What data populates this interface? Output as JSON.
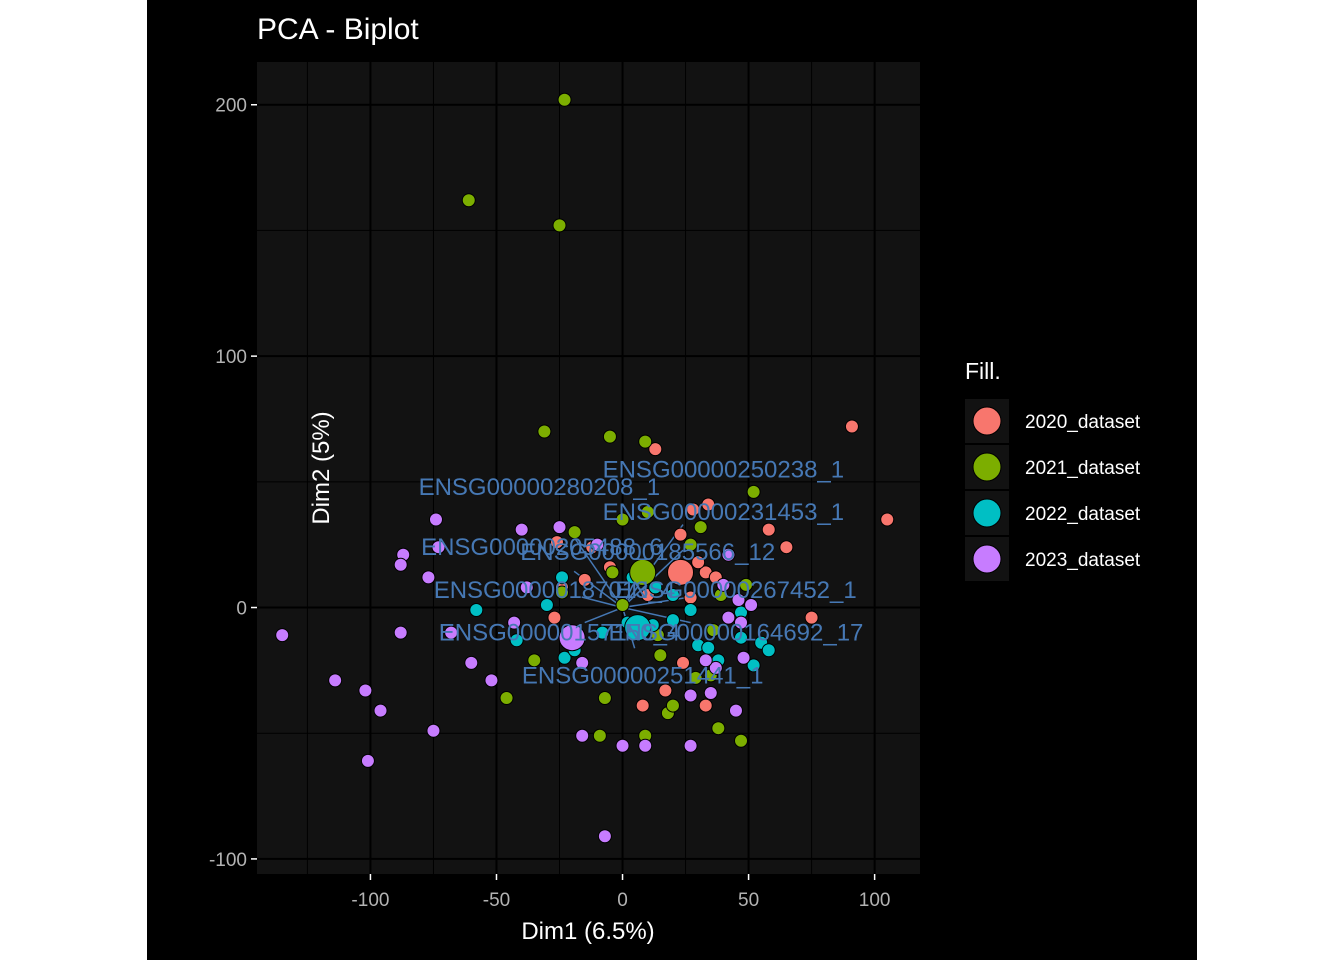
{
  "chart_data": {
    "type": "scatter",
    "title": "PCA - Biplot",
    "xlabel": "Dim1 (6.5%)",
    "ylabel": "Dim2 (5%)",
    "xlim": [
      -145,
      118
    ],
    "ylim": [
      -106,
      217
    ],
    "x_ticks": [
      -100,
      -50,
      0,
      50,
      100
    ],
    "y_ticks": [
      -100,
      0,
      100,
      200
    ],
    "x_tick_labels": [
      "-100",
      "-50",
      "0",
      "50",
      "100"
    ],
    "y_tick_labels": [
      "-100",
      "0",
      "100",
      "200"
    ],
    "grid": true,
    "legend": {
      "title": "Fill.",
      "position": "right",
      "entries": [
        {
          "label": "2020_dataset",
          "color": "#F8766D"
        },
        {
          "label": "2021_dataset",
          "color": "#7CAE00"
        },
        {
          "label": "2022_dataset",
          "color": "#00BFC4"
        },
        {
          "label": "2023_dataset",
          "color": "#C77CFF"
        }
      ]
    },
    "series": [
      {
        "name": "2020_dataset",
        "color": "#F8766D",
        "centroid": [
          23,
          14
        ],
        "points": [
          [
            91,
            72
          ],
          [
            105,
            35
          ],
          [
            13,
            63
          ],
          [
            34,
            41
          ],
          [
            58,
            31
          ],
          [
            65,
            24
          ],
          [
            75,
            -4
          ],
          [
            28,
            39
          ],
          [
            23,
            29
          ],
          [
            33,
            14
          ],
          [
            37,
            12
          ],
          [
            30,
            18
          ],
          [
            24,
            -22
          ],
          [
            17,
            -33
          ],
          [
            8,
            -39
          ],
          [
            33,
            -39
          ],
          [
            -15,
            11
          ],
          [
            -27,
            -4
          ],
          [
            -24,
            8
          ],
          [
            -26,
            26
          ],
          [
            -12,
            24
          ],
          [
            -5,
            16
          ],
          [
            10,
            5
          ],
          [
            27,
            4
          ]
        ]
      },
      {
        "name": "2021_dataset",
        "color": "#7CAE00",
        "centroid": [
          8,
          14
        ],
        "points": [
          [
            -23,
            202
          ],
          [
            -61,
            162
          ],
          [
            -25,
            152
          ],
          [
            -31,
            70
          ],
          [
            -5,
            68
          ],
          [
            9,
            66
          ],
          [
            52,
            46
          ],
          [
            10,
            38
          ],
          [
            31,
            32
          ],
          [
            27,
            25
          ],
          [
            0,
            35
          ],
          [
            -19,
            30
          ],
          [
            49,
            9
          ],
          [
            39,
            5
          ],
          [
            -24,
            6
          ],
          [
            -35,
            -21
          ],
          [
            -46,
            -36
          ],
          [
            -7,
            -36
          ],
          [
            -9,
            -51
          ],
          [
            9,
            -51
          ],
          [
            18,
            -42
          ],
          [
            20,
            -39
          ],
          [
            38,
            -48
          ],
          [
            47,
            -53
          ],
          [
            15,
            -19
          ],
          [
            35,
            -27
          ],
          [
            29,
            -28
          ],
          [
            -4,
            14
          ],
          [
            0,
            1
          ],
          [
            36,
            -9
          ],
          [
            14,
            -11
          ]
        ]
      },
      {
        "name": "2022_dataset",
        "color": "#00BFC4",
        "centroid": [
          6,
          -8
        ],
        "points": [
          [
            -24,
            12
          ],
          [
            -58,
            -1
          ],
          [
            -42,
            -13
          ],
          [
            -23,
            -20
          ],
          [
            -30,
            1
          ],
          [
            -19,
            -17
          ],
          [
            -8,
            -10
          ],
          [
            2,
            -6
          ],
          [
            12,
            -7
          ],
          [
            20,
            -5
          ],
          [
            30,
            -15
          ],
          [
            34,
            -16
          ],
          [
            38,
            -21
          ],
          [
            47,
            -12
          ],
          [
            55,
            -14
          ],
          [
            58,
            -17
          ],
          [
            52,
            -23
          ],
          [
            47,
            -2
          ],
          [
            4,
            12
          ],
          [
            13,
            8
          ],
          [
            20,
            5
          ],
          [
            27,
            -1
          ]
        ]
      },
      {
        "name": "2023_dataset",
        "color": "#C77CFF",
        "centroid": [
          -20,
          -12
        ],
        "points": [
          [
            -74,
            35
          ],
          [
            -87,
            21
          ],
          [
            -88,
            17
          ],
          [
            -77,
            12
          ],
          [
            -40,
            31
          ],
          [
            -25,
            32
          ],
          [
            -10,
            25
          ],
          [
            -88,
            -10
          ],
          [
            -135,
            -11
          ],
          [
            -114,
            -29
          ],
          [
            -102,
            -33
          ],
          [
            -96,
            -41
          ],
          [
            -75,
            -49
          ],
          [
            -101,
            -61
          ],
          [
            -60,
            -22
          ],
          [
            -52,
            -29
          ],
          [
            -43,
            -6
          ],
          [
            -38,
            8
          ],
          [
            -16,
            -22
          ],
          [
            -16,
            -51
          ],
          [
            0,
            -55
          ],
          [
            9,
            -55
          ],
          [
            27,
            -55
          ],
          [
            -7,
            -91
          ],
          [
            27,
            -35
          ],
          [
            35,
            -34
          ],
          [
            45,
            -41
          ],
          [
            48,
            -20
          ],
          [
            37,
            -24
          ],
          [
            33,
            -21
          ],
          [
            42,
            -4
          ],
          [
            47,
            -6
          ],
          [
            51,
            1
          ],
          [
            46,
            3
          ],
          [
            42,
            21
          ],
          [
            40,
            9
          ],
          [
            -68,
            -10
          ],
          [
            -73,
            24
          ]
        ]
      }
    ],
    "variables": [
      {
        "label": "ENSG00000250238_1",
        "x": 40,
        "y": 55
      },
      {
        "label": "ENSG00000280208_1",
        "x": -33,
        "y": 48
      },
      {
        "label": "ENSG00000231453_1",
        "x": 40,
        "y": 38
      },
      {
        "label": "ENSG00000205488_6",
        "x": -32,
        "y": 24
      },
      {
        "label": "ENSG00000185566_12",
        "x": 10,
        "y": 22
      },
      {
        "label": "ENSG00000187013_4",
        "x": -27,
        "y": 7
      },
      {
        "label": "ENSG00000267452_1",
        "x": 45,
        "y": 7
      },
      {
        "label": "ENSG00000157150_4",
        "x": -25,
        "y": -10
      },
      {
        "label": "ENSG00000164692_17",
        "x": 45,
        "y": -10
      },
      {
        "label": "ENSG00000251441_1",
        "x": 8,
        "y": -27
      }
    ]
  }
}
